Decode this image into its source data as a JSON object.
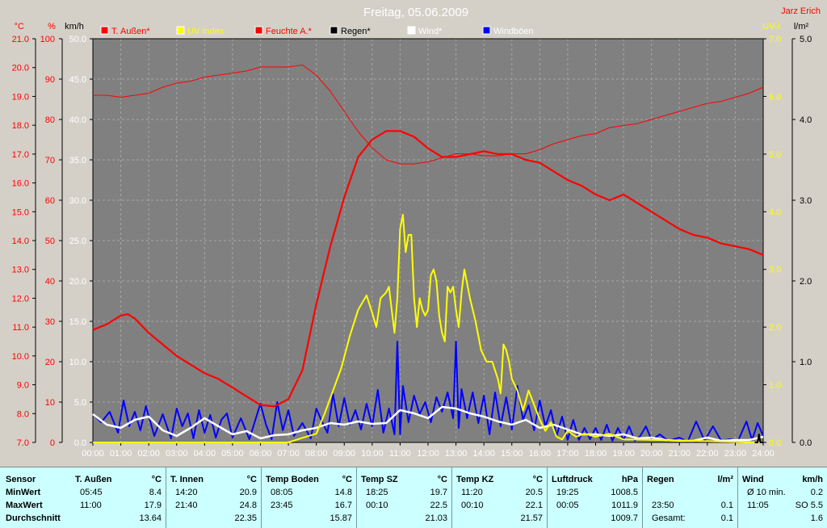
{
  "chart_data": {
    "type": "line",
    "title": "Freitag, 05.06.2009",
    "corner_label": "Jarz Erich",
    "x_ticks": [
      "00:00",
      "01:00",
      "02:00",
      "03:00",
      "04:00",
      "05:00",
      "06:00",
      "07:00",
      "08:00",
      "09:00",
      "10:00",
      "11:00",
      "12:00",
      "13:00",
      "14:00",
      "15:00",
      "16:00",
      "17:00",
      "18:00",
      "19:00",
      "20:00",
      "21:00",
      "22:00",
      "23:00",
      "24:00"
    ],
    "x_range_hours": [
      0,
      24
    ],
    "axes": {
      "temp": {
        "unit": "°C",
        "range": [
          7.0,
          21.0
        ],
        "ticks": [
          "21.0",
          "20.0",
          "19.0",
          "18.0",
          "17.0",
          "16.0",
          "15.0",
          "14.0",
          "13.0",
          "12.0",
          "11.0",
          "10.0",
          "9.0",
          "8.0",
          "7.0"
        ],
        "color": "#ff0000"
      },
      "humidity": {
        "unit": "%",
        "range": [
          0,
          100
        ],
        "ticks": [
          "100",
          "90",
          "80",
          "70",
          "60",
          "50",
          "40",
          "30",
          "20",
          "10",
          "0"
        ],
        "color": "#ff0000"
      },
      "wind": {
        "unit": "km/h",
        "range": [
          0,
          50
        ],
        "ticks": [
          "50.0",
          "45.0",
          "40.0",
          "35.0",
          "30.0",
          "25.0",
          "20.0",
          "15.0",
          "10.0",
          "5.0",
          "0.0"
        ],
        "color": "#ffffff"
      },
      "uv": {
        "unit": "UV-I",
        "range": [
          0,
          7
        ],
        "ticks": [
          "7.0",
          "6.0",
          "5.0",
          "4.0",
          "3.0",
          "2.0",
          "1.0",
          "0.0"
        ],
        "color": "#ffff00"
      },
      "rain": {
        "unit": "l/m²",
        "range": [
          0,
          5
        ],
        "ticks": [
          "5.0",
          "4.0",
          "3.0",
          "2.0",
          "1.0",
          "0.0"
        ],
        "color": "#000000"
      }
    },
    "grid": true,
    "legend_position": "top",
    "legend": [
      {
        "label": "T. Außen*",
        "color": "#ff0000",
        "text_color": "#ff0000"
      },
      {
        "label": "UV Index",
        "color": "#ffff00",
        "text_color": "#ffff00"
      },
      {
        "label": "Feuchte A.*",
        "color": "#ff0000",
        "text_color": "#ff0000"
      },
      {
        "label": "Regen*",
        "color": "#000000",
        "text_color": "#000000"
      },
      {
        "label": "Wind*",
        "color": "#ffffff",
        "text_color": "#ffffff"
      },
      {
        "label": "Windböen",
        "color": "#0000ff",
        "text_color": "#ffffff"
      }
    ],
    "series": [
      {
        "name": "T. Außen*",
        "axis": "temp",
        "color": "#ff0000",
        "width": 2.2,
        "x": [
          0,
          0.5,
          1,
          1.25,
          1.5,
          2,
          2.5,
          3,
          3.5,
          4,
          4.5,
          5,
          5.5,
          6,
          6.5,
          7,
          7.5,
          8,
          8.5,
          9,
          9.5,
          10,
          10.5,
          11,
          11.5,
          12,
          12.5,
          13,
          13.5,
          14,
          14.5,
          15,
          15.5,
          16,
          16.5,
          17,
          17.5,
          18,
          18.5,
          19,
          19.5,
          20,
          20.5,
          21,
          21.5,
          22,
          22.5,
          23,
          23.5,
          24
        ],
        "y": [
          10.9,
          11.1,
          11.4,
          11.45,
          11.3,
          10.8,
          10.4,
          10.0,
          9.7,
          9.4,
          9.2,
          8.9,
          8.6,
          8.3,
          8.25,
          8.5,
          9.5,
          11.8,
          13.8,
          15.5,
          16.9,
          17.5,
          17.8,
          17.8,
          17.6,
          17.2,
          16.9,
          16.9,
          17.0,
          17.1,
          17.0,
          17.0,
          16.8,
          16.7,
          16.4,
          16.1,
          15.9,
          15.6,
          15.4,
          15.6,
          15.3,
          15.0,
          14.7,
          14.4,
          14.2,
          14.1,
          13.9,
          13.8,
          13.7,
          13.5
        ]
      },
      {
        "name": "Feuchte A.*",
        "axis": "humidity",
        "color": "#ff0000",
        "width": 1,
        "x": [
          0,
          0.5,
          1,
          1.5,
          2,
          2.5,
          3,
          3.5,
          4,
          4.5,
          5,
          5.5,
          6,
          6.5,
          7,
          7.5,
          8,
          8.5,
          9,
          9.5,
          10,
          10.5,
          11,
          11.5,
          12,
          12.5,
          13,
          13.5,
          14,
          14.5,
          15,
          15.5,
          16,
          16.5,
          17,
          17.5,
          18,
          18.5,
          19,
          19.5,
          20,
          20.5,
          21,
          21.5,
          22,
          22.5,
          23,
          23.5,
          24
        ],
        "y": [
          86,
          86,
          85.5,
          86,
          86.5,
          88,
          89,
          89.5,
          90.5,
          91,
          91.5,
          92,
          93,
          93,
          93,
          93.5,
          91,
          87,
          82,
          77,
          73,
          70,
          69,
          69,
          69.5,
          70.5,
          71.5,
          71.5,
          71,
          71,
          71.5,
          71.5,
          72.5,
          74,
          75,
          76,
          76.5,
          78,
          78.5,
          79,
          80,
          81,
          82,
          83,
          84,
          84.5,
          85.5,
          86.5,
          88
        ]
      },
      {
        "name": "UV Index",
        "axis": "uv",
        "color": "#ffff00",
        "width": 2,
        "x": [
          0,
          7.0,
          7.5,
          8.0,
          8.3,
          8.6,
          8.9,
          9.2,
          9.5,
          9.8,
          10.0,
          10.15,
          10.3,
          10.5,
          10.6,
          10.7,
          10.8,
          10.9,
          11.0,
          11.1,
          11.2,
          11.3,
          11.4,
          11.5,
          11.6,
          11.7,
          11.8,
          11.9,
          12.0,
          12.1,
          12.2,
          12.3,
          12.4,
          12.5,
          12.6,
          12.7,
          12.8,
          12.9,
          13.0,
          13.1,
          13.2,
          13.3,
          13.5,
          13.7,
          13.9,
          14.1,
          14.3,
          14.5,
          14.6,
          14.7,
          14.8,
          14.9,
          15.0,
          15.2,
          15.4,
          15.6,
          15.8,
          16.0,
          16.2,
          16.4,
          16.6,
          16.8,
          17.0,
          17.3,
          17.6,
          18.0,
          18.5,
          19.0,
          19.5,
          24
        ],
        "y": [
          0,
          0,
          0.08,
          0.15,
          0.5,
          0.9,
          1.3,
          1.85,
          2.3,
          2.55,
          2.25,
          2.0,
          2.5,
          2.6,
          2.7,
          2.3,
          1.9,
          2.5,
          3.7,
          3.95,
          3.3,
          3.6,
          3.6,
          2.5,
          2.0,
          2.5,
          2.3,
          2.2,
          2.3,
          2.9,
          3.0,
          2.8,
          2.2,
          1.9,
          1.75,
          2.7,
          2.6,
          2.7,
          2.3,
          2.0,
          2.6,
          3.0,
          2.5,
          2.1,
          1.6,
          1.4,
          1.4,
          1.1,
          0.85,
          1.7,
          1.6,
          1.4,
          1.1,
          0.9,
          0.55,
          0.9,
          0.65,
          0.4,
          0.2,
          0.35,
          0.1,
          0.05,
          0.2,
          0.1,
          0.15,
          0.1,
          0.15,
          0.05,
          0.05,
          0
        ]
      },
      {
        "name": "Wind*",
        "axis": "wind",
        "color": "#ffffff",
        "width": 2.5,
        "x": [
          0,
          0.5,
          1,
          1.5,
          2,
          2.5,
          3,
          3.5,
          4,
          4.5,
          5,
          5.5,
          6,
          6.5,
          7,
          7.5,
          8,
          8.5,
          9,
          9.5,
          10,
          10.5,
          11,
          11.5,
          12,
          12.5,
          13,
          13.5,
          14,
          14.5,
          15,
          15.5,
          16,
          16.5,
          17,
          17.5,
          18,
          18.5,
          19,
          19.5,
          20,
          20.5,
          21,
          21.5,
          22,
          22.5,
          23,
          23.5,
          24
        ],
        "y": [
          3.5,
          2.2,
          1.8,
          2.8,
          3.2,
          1.5,
          0.8,
          1.8,
          3.0,
          2.0,
          1.0,
          1.4,
          0.5,
          0.9,
          1.0,
          1.5,
          1.8,
          2.4,
          2.2,
          2.6,
          2.3,
          2.4,
          4.0,
          3.6,
          3.0,
          4.4,
          4.2,
          3.6,
          3.2,
          2.6,
          2.2,
          2.8,
          1.8,
          2.2,
          1.6,
          1.0,
          1.0,
          0.8,
          1.0,
          0.5,
          0.6,
          0.3,
          0.2,
          0.2,
          0.6,
          0.2,
          0.3,
          0.3,
          0.7
        ]
      },
      {
        "name": "Windböen",
        "axis": "wind",
        "color": "#0000ff",
        "width": 2,
        "x": [
          0,
          0.3,
          0.6,
          0.9,
          1.1,
          1.3,
          1.5,
          1.7,
          1.9,
          2.2,
          2.5,
          2.8,
          3.0,
          3.2,
          3.4,
          3.6,
          3.8,
          4.0,
          4.2,
          4.4,
          4.6,
          4.8,
          5.0,
          5.3,
          5.6,
          6.0,
          6.2,
          6.4,
          6.6,
          6.8,
          7.0,
          7.2,
          7.5,
          7.8,
          8.0,
          8.2,
          8.4,
          8.6,
          8.8,
          9.0,
          9.2,
          9.4,
          9.6,
          9.8,
          10.0,
          10.2,
          10.4,
          10.6,
          10.8,
          10.9,
          11.0,
          11.1,
          11.3,
          11.5,
          11.7,
          11.9,
          12.1,
          12.3,
          12.5,
          12.7,
          12.9,
          13.0,
          13.1,
          13.2,
          13.4,
          13.6,
          13.8,
          14.0,
          14.2,
          14.4,
          14.6,
          14.8,
          15.0,
          15.2,
          15.4,
          15.6,
          15.8,
          16.0,
          16.2,
          16.4,
          16.6,
          16.8,
          17.0,
          17.2,
          17.4,
          17.6,
          17.8,
          18.0,
          18.2,
          18.4,
          18.6,
          18.8,
          19.0,
          19.2,
          19.4,
          19.6,
          19.8,
          20.0,
          20.3,
          20.6,
          21.0,
          21.3,
          21.6,
          21.9,
          22.2,
          22.5,
          22.8,
          23.1,
          23.4,
          23.6,
          23.8,
          24
        ],
        "y": [
          3.5,
          2.5,
          3.8,
          1.2,
          5.2,
          2.0,
          3.8,
          1.5,
          4.5,
          0.8,
          3.5,
          0.5,
          4.2,
          2.0,
          3.6,
          0.5,
          4.0,
          1.2,
          3.4,
          0.6,
          2.8,
          3.6,
          0.6,
          3.0,
          0.4,
          4.8,
          2.2,
          0.4,
          5.0,
          1.5,
          4.0,
          0.8,
          2.4,
          0.5,
          4.2,
          2.6,
          1.2,
          6.0,
          2.0,
          5.5,
          2.2,
          4.0,
          1.6,
          4.8,
          2.0,
          6.5,
          1.2,
          4.2,
          1.0,
          12.5,
          1.0,
          7.0,
          2.5,
          5.8,
          3.5,
          5.0,
          2.5,
          5.6,
          3.8,
          6.2,
          3.0,
          12.5,
          1.8,
          6.6,
          3.0,
          6.2,
          2.4,
          5.8,
          1.0,
          6.2,
          2.0,
          5.6,
          1.6,
          7.0,
          2.8,
          4.6,
          1.5,
          5.2,
          2.0,
          4.0,
          0.8,
          3.2,
          0.3,
          2.8,
          0.3,
          1.8,
          0.4,
          1.8,
          0.3,
          2.2,
          0.2,
          1.8,
          0.3,
          2.0,
          0.2,
          0.8,
          2.0,
          0.3,
          1.0,
          0.2,
          0.6,
          0.1,
          2.6,
          0.2,
          2.0,
          0.2,
          0.4,
          0.2,
          2.6,
          0.3,
          2.4,
          0.8
        ]
      },
      {
        "name": "Regen*",
        "axis": "rain",
        "color": "#000000",
        "width": 2,
        "x": [
          23.7,
          23.8,
          23.85,
          23.9,
          24
        ],
        "y": [
          0,
          0,
          0.1,
          0,
          0
        ]
      }
    ]
  },
  "table": {
    "sensor_label": "Sensor",
    "min_label": "MinWert",
    "max_label": "MaxWert",
    "avg_label": "Durchschnitt",
    "columns": [
      {
        "name": "T. Außen",
        "unit": "°C",
        "min_time": "05:45",
        "min": "8.4",
        "max_time": "11:00",
        "max": "17.9",
        "avg_label": "",
        "avg": "13.64"
      },
      {
        "name": "T. Innen",
        "unit": "°C",
        "min_time": "14:20",
        "min": "20.9",
        "max_time": "21:40",
        "max": "24.8",
        "avg_label": "",
        "avg": "22.35"
      },
      {
        "name": "Temp Boden",
        "unit": "°C",
        "min_time": "08:05",
        "min": "14.8",
        "max_time": "23:45",
        "max": "16.7",
        "avg_label": "",
        "avg": "15.87"
      },
      {
        "name": "Temp SZ",
        "unit": "°C",
        "min_time": "18:25",
        "min": "19.7",
        "max_time": "00:10",
        "max": "22.5",
        "avg_label": "",
        "avg": "21.03"
      },
      {
        "name": "Temp KZ",
        "unit": "°C",
        "min_time": "11:20",
        "min": "20.5",
        "max_time": "00:10",
        "max": "22.1",
        "avg_label": "",
        "avg": "21.57"
      },
      {
        "name": "Luftdruck",
        "unit": "hPa",
        "min_time": "19:25",
        "min": "1008.5",
        "max_time": "00:05",
        "max": "1011.9",
        "avg_label": "",
        "avg": "1009.7"
      },
      {
        "name": "Regen",
        "unit": "l/m²",
        "min_time": "",
        "min": "",
        "max_time": "23:50",
        "max": "0.1",
        "avg_label": "Gesamt:",
        "avg": "0.1"
      },
      {
        "name": "Wind",
        "unit": "km/h",
        "min_time": "Ø 10 min.",
        "min": "0.2",
        "max_time": "11:05",
        "max": "SO 5.5",
        "avg_label": "",
        "avg": "1.6"
      }
    ]
  }
}
